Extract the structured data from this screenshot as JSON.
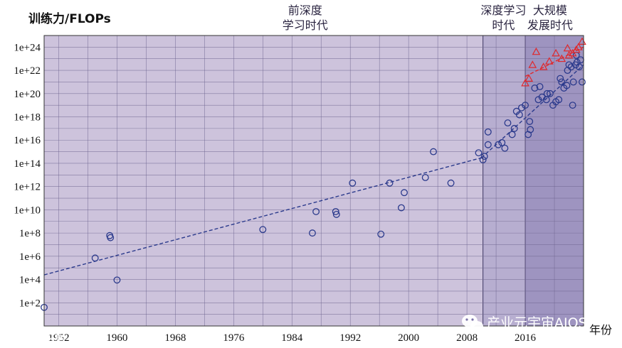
{
  "chart_data": {
    "type": "scatter",
    "title": "",
    "ylabel": "训练力/FLOPs",
    "xlabel": "年份",
    "xlim": [
      1950,
      2024
    ],
    "ylim": [
      1,
      1e+25
    ],
    "y_scale": "log",
    "x_ticks": [
      1952,
      1960,
      1968,
      1976,
      1984,
      1992,
      2000,
      2008,
      2016
    ],
    "y_ticks": [
      {
        "value": 100,
        "label": "1e+2"
      },
      {
        "value": 10000,
        "label": "1e+4"
      },
      {
        "value": 1000000,
        "label": "1e+6"
      },
      {
        "value": 100000000,
        "label": "1e+8"
      },
      {
        "value": 10000000000,
        "label": "1e+10"
      },
      {
        "value": 1000000000000,
        "label": "1e+12"
      },
      {
        "value": 100000000000000,
        "label": "1e+14"
      },
      {
        "value": 10000000000000000,
        "label": "1e+16"
      },
      {
        "value": 1000000000000000000,
        "label": "1e+18"
      },
      {
        "value": 1e+20,
        "label": "1e+20"
      },
      {
        "value": 1e+22,
        "label": "1e+22"
      },
      {
        "value": 1e+24,
        "label": "1e+24"
      }
    ],
    "grid": true,
    "eras": [
      {
        "label_lines": [
          "前深度",
          "学习时代"
        ],
        "x_start": 1950,
        "x_end": 2010.2,
        "color": "#cdc3dc"
      },
      {
        "label_lines": [
          "深度学习",
          "时代"
        ],
        "x_start": 2010.2,
        "x_end": 2016.0,
        "color": "#b7aed0"
      },
      {
        "label_lines": [
          "大规模",
          "发展时代"
        ],
        "x_start": 2016.0,
        "x_end": 2024,
        "color": "#9e94c0"
      }
    ],
    "series": [
      {
        "marker": "circle",
        "color": "#2b3a8c",
        "points": [
          {
            "x": 1950.0,
            "y": 40
          },
          {
            "x": 1957.0,
            "y": 700000
          },
          {
            "x": 1959.0,
            "y": 60000000
          },
          {
            "x": 1959.1,
            "y": 40000000
          },
          {
            "x": 1960.0,
            "y": 9000
          },
          {
            "x": 1980.0,
            "y": 200000000
          },
          {
            "x": 1986.8,
            "y": 100000000
          },
          {
            "x": 1987.3,
            "y": 7000000000
          },
          {
            "x": 1990.0,
            "y": 7000000000
          },
          {
            "x": 1990.1,
            "y": 4000000000
          },
          {
            "x": 1992.3,
            "y": 2000000000000
          },
          {
            "x": 1996.2,
            "y": 80000000
          },
          {
            "x": 1997.4,
            "y": 2000000000000
          },
          {
            "x": 1999.0,
            "y": 15000000000
          },
          {
            "x": 1999.4,
            "y": 300000000000
          },
          {
            "x": 2002.3,
            "y": 6000000000000
          },
          {
            "x": 2003.4,
            "y": 1000000000000000.0
          },
          {
            "x": 2005.8,
            "y": 2000000000000
          },
          {
            "x": 2009.6,
            "y": 800000000000000
          },
          {
            "x": 2010.2,
            "y": 200000000000000
          },
          {
            "x": 2010.4,
            "y": 400000000000000
          },
          {
            "x": 2010.9,
            "y": 5e+16
          },
          {
            "x": 2010.9,
            "y": 4000000000000000.0
          },
          {
            "x": 2012.3,
            "y": 4000000000000000.0
          },
          {
            "x": 2012.8,
            "y": 6000000000000000.0
          },
          {
            "x": 2013.2,
            "y": 2000000000000000.0
          },
          {
            "x": 2013.6,
            "y": 3e+17
          },
          {
            "x": 2014.2,
            "y": 3e+16
          },
          {
            "x": 2014.5,
            "y": 1e+17
          },
          {
            "x": 2014.8,
            "y": 3e+18
          },
          {
            "x": 2015.2,
            "y": 1.5e+18
          },
          {
            "x": 2015.5,
            "y": 6e+18
          },
          {
            "x": 2016.0,
            "y": 1e+19
          },
          {
            "x": 2016.4,
            "y": 3e+16
          },
          {
            "x": 2016.6,
            "y": 4e+17
          },
          {
            "x": 2016.7,
            "y": 8e+16
          },
          {
            "x": 2017.3,
            "y": 3e+20
          },
          {
            "x": 2017.8,
            "y": 3e+19
          },
          {
            "x": 2018.3,
            "y": 5e+19
          },
          {
            "x": 2018.9,
            "y": 3e+19
          },
          {
            "x": 2019.4,
            "y": 1e+20
          },
          {
            "x": 2019.8,
            "y": 1e+19
          },
          {
            "x": 2020.2,
            "y": 2e+19
          },
          {
            "x": 2020.6,
            "y": 3e+19
          },
          {
            "x": 2021.0,
            "y": 1e+21
          },
          {
            "x": 2021.3,
            "y": 3e+20
          },
          {
            "x": 2021.7,
            "y": 5e+20
          },
          {
            "x": 2022.0,
            "y": 3e+22
          },
          {
            "x": 2022.3,
            "y": 2e+22
          },
          {
            "x": 2022.6,
            "y": 1e+21
          },
          {
            "x": 2022.9,
            "y": 3e+22
          },
          {
            "x": 2023.1,
            "y": 5e+22
          },
          {
            "x": 2023.4,
            "y": 2e+22
          },
          {
            "x": 2023.6,
            "y": 8e+22
          },
          {
            "x": 2023.8,
            "y": 1e+21
          },
          {
            "x": 2022.5,
            "y": 1e+19
          },
          {
            "x": 2019.0,
            "y": 1e+20
          },
          {
            "x": 2018.0,
            "y": 4e+20
          },
          {
            "x": 2020.8,
            "y": 2e+21
          },
          {
            "x": 2021.8,
            "y": 1e+22
          },
          {
            "x": 2023.0,
            "y": 2e+23
          }
        ]
      },
      {
        "marker": "triangle",
        "color": "#e0282c",
        "points": [
          {
            "x": 2016.0,
            "y": 8e+20
          },
          {
            "x": 2016.5,
            "y": 2e+21
          },
          {
            "x": 2017.0,
            "y": 3e+22
          },
          {
            "x": 2017.5,
            "y": 4e+23
          },
          {
            "x": 2018.5,
            "y": 2e+22
          },
          {
            "x": 2019.3,
            "y": 6e+22
          },
          {
            "x": 2020.2,
            "y": 3e+23
          },
          {
            "x": 2021.0,
            "y": 1e+23
          },
          {
            "x": 2021.8,
            "y": 8e+23
          },
          {
            "x": 2022.5,
            "y": 3e+23
          },
          {
            "x": 2023.3,
            "y": 1e+24
          },
          {
            "x": 2023.8,
            "y": 3e+24
          },
          {
            "x": 2023.0,
            "y": 6e+23
          },
          {
            "x": 2022.0,
            "y": 2e+23
          }
        ]
      }
    ],
    "trend_lines": [
      {
        "color": "#2b3a8c",
        "style": "dashed",
        "points": [
          {
            "x": 1950,
            "y": 25000
          },
          {
            "x": 2010.0,
            "y": 300000000000000
          }
        ]
      },
      {
        "color": "#2b3a8c",
        "style": "dashed",
        "points": [
          {
            "x": 2010.0,
            "y": 300000000000000
          },
          {
            "x": 2024,
            "y": 3e+22
          }
        ]
      },
      {
        "color": "#e0282c",
        "style": "dashed",
        "points": [
          {
            "x": 2016.0,
            "y": 3e+21
          },
          {
            "x": 2024,
            "y": 1e+24
          }
        ]
      }
    ]
  },
  "watermarks": {
    "left": "大数据文摘",
    "right": "产业元宇宙AIOS"
  }
}
